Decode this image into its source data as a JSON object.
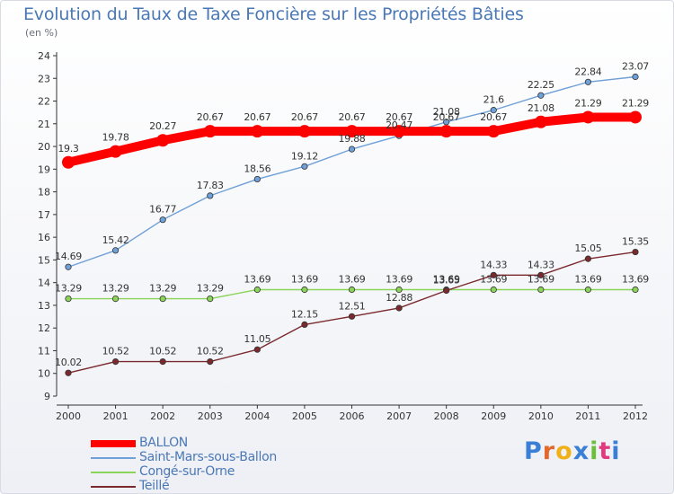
{
  "title": "Evolution du Taux de Taxe Foncière sur les Propriétés Bâties",
  "unit_label": "(en %)",
  "logo": {
    "text": "Proxiti",
    "letter_colors": [
      "#3a7fd6",
      "#e2682b",
      "#f0b018",
      "#3a7fd6",
      "#6cbf3a",
      "#e23a7f",
      "#3a7fd6"
    ]
  },
  "chart_data": {
    "type": "line",
    "title": "Evolution du Taux de Taxe Foncière sur les Propriétés Bâties",
    "xlabel": "",
    "ylabel": "(en %)",
    "ylim": [
      9,
      24
    ],
    "yticks": [
      "9",
      "10",
      "11",
      "12",
      "13",
      "14",
      "15",
      "16",
      "17",
      "18",
      "19",
      "20",
      "21",
      "22",
      "23",
      "24"
    ],
    "x": [
      "2000",
      "2001",
      "2002",
      "2003",
      "2004",
      "2005",
      "2006",
      "2007",
      "2008",
      "2009",
      "2010",
      "2011",
      "2012"
    ],
    "series": [
      {
        "name": "BALLON",
        "color": "#ff0000",
        "values": [
          19.3,
          19.78,
          20.27,
          20.67,
          20.67,
          20.67,
          20.67,
          20.67,
          20.67,
          20.67,
          21.08,
          21.29,
          21.29
        ],
        "labels": [
          "19.3",
          "19.78",
          "20.27",
          "20.67",
          "20.67",
          "20.67",
          "20.67",
          "20.67",
          "20.67",
          "20.67",
          "21.08",
          "21.29",
          "21.29"
        ]
      },
      {
        "name": "Saint-Mars-sous-Ballon",
        "color": "#6fa0d8",
        "values": [
          14.69,
          15.42,
          16.77,
          17.83,
          18.56,
          19.12,
          19.88,
          20.47,
          21.08,
          21.6,
          22.25,
          22.84,
          23.07
        ],
        "labels": [
          "14.69",
          "15.42",
          "16.77",
          "17.83",
          "18.56",
          "19.12",
          "19.88",
          "20.47",
          "21.08",
          "21.6",
          "22.25",
          "22.84",
          "23.07"
        ]
      },
      {
        "name": "Congé-sur-Orne",
        "color": "#8cd35a",
        "values": [
          13.29,
          13.29,
          13.29,
          13.29,
          13.69,
          13.69,
          13.69,
          13.69,
          13.69,
          13.69,
          13.69,
          13.69,
          13.69
        ],
        "labels": [
          "13.29",
          "13.29",
          "13.29",
          "13.29",
          "13.69",
          "13.69",
          "13.69",
          "13.69",
          "13.69",
          "13.69",
          "13.69",
          "13.69",
          "13.69"
        ]
      },
      {
        "name": "Teillé",
        "color": "#7a2a2e",
        "values": [
          10.02,
          10.52,
          10.52,
          10.52,
          11.05,
          12.15,
          12.51,
          12.88,
          13.65,
          14.33,
          14.33,
          15.05,
          15.35
        ],
        "labels": [
          "10.02",
          "10.52",
          "10.52",
          "10.52",
          "11.05",
          "12.15",
          "12.51",
          "12.88",
          "13.65",
          "14.33",
          "14.33",
          "15.05",
          "15.35"
        ]
      }
    ],
    "legend_position": "bottom-left",
    "grid": false
  }
}
